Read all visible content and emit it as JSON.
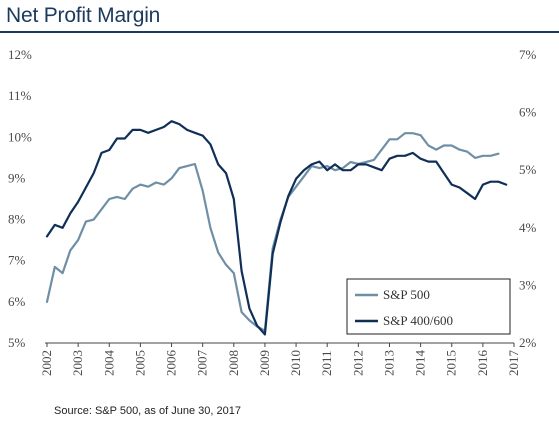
{
  "title": "Net Profit Margin",
  "source": "Source: S&P 500, as of June 30, 2017",
  "colors": {
    "title": "#1b3a5c",
    "sp500": "#6f8fa6",
    "sp400_600": "#0f2f57",
    "rule": "#1b3a5c"
  },
  "chart_data": {
    "type": "line",
    "title": "Net Profit Margin",
    "legend_position": "bottom-right",
    "grid": false,
    "x_ticks": [
      "2002",
      "2003",
      "2004",
      "2005",
      "2006",
      "2007",
      "2008",
      "2009",
      "2010",
      "2011",
      "2012",
      "2013",
      "2014",
      "2015",
      "2016",
      "2017"
    ],
    "xlim": [
      2002,
      2017
    ],
    "y_left": {
      "lim": [
        5,
        12
      ],
      "ticks": [
        "5%",
        "6%",
        "7%",
        "8%",
        "9%",
        "10%",
        "11%",
        "12%"
      ]
    },
    "y_right": {
      "lim": [
        2,
        7
      ],
      "ticks": [
        "2%",
        "3%",
        "4%",
        "5%",
        "6%",
        "7%"
      ]
    },
    "series": [
      {
        "name": "S&P 500",
        "axis": "left",
        "x": [
          2002.0,
          2002.25,
          2002.5,
          2002.75,
          2003.0,
          2003.25,
          2003.5,
          2003.75,
          2004.0,
          2004.25,
          2004.5,
          2004.75,
          2005.0,
          2005.25,
          2005.5,
          2005.75,
          2006.0,
          2006.25,
          2006.5,
          2006.75,
          2007.0,
          2007.25,
          2007.5,
          2007.75,
          2008.0,
          2008.25,
          2008.5,
          2008.75,
          2009.0,
          2009.25,
          2009.5,
          2009.75,
          2010.0,
          2010.25,
          2010.5,
          2010.75,
          2011.0,
          2011.25,
          2011.5,
          2011.75,
          2012.0,
          2012.25,
          2012.5,
          2012.75,
          2013.0,
          2013.25,
          2013.5,
          2013.75,
          2014.0,
          2014.25,
          2014.5,
          2014.75,
          2015.0,
          2015.25,
          2015.5,
          2015.75,
          2016.0,
          2016.25,
          2016.5
        ],
        "values": [
          6.0,
          6.85,
          6.7,
          7.25,
          7.5,
          7.95,
          8.0,
          8.25,
          8.5,
          8.55,
          8.5,
          8.75,
          8.85,
          8.8,
          8.9,
          8.85,
          9.0,
          9.25,
          9.3,
          9.35,
          8.7,
          7.8,
          7.2,
          6.9,
          6.7,
          5.75,
          5.55,
          5.4,
          5.3,
          7.3,
          8.0,
          8.55,
          8.8,
          9.05,
          9.3,
          9.25,
          9.3,
          9.2,
          9.25,
          9.4,
          9.35,
          9.4,
          9.45,
          9.7,
          9.95,
          9.95,
          10.1,
          10.1,
          10.05,
          9.8,
          9.7,
          9.8,
          9.8,
          9.7,
          9.65,
          9.5,
          9.55,
          9.55,
          9.6
        ]
      },
      {
        "name": "S&P 400/600",
        "axis": "right",
        "x": [
          2002.0,
          2002.25,
          2002.5,
          2002.75,
          2003.0,
          2003.25,
          2003.5,
          2003.75,
          2004.0,
          2004.25,
          2004.5,
          2004.75,
          2005.0,
          2005.25,
          2005.5,
          2005.75,
          2006.0,
          2006.25,
          2006.5,
          2006.75,
          2007.0,
          2007.25,
          2007.5,
          2007.75,
          2008.0,
          2008.25,
          2008.5,
          2008.75,
          2009.0,
          2009.25,
          2009.5,
          2009.75,
          2010.0,
          2010.25,
          2010.5,
          2010.75,
          2011.0,
          2011.25,
          2011.5,
          2011.75,
          2012.0,
          2012.25,
          2012.5,
          2012.75,
          2013.0,
          2013.25,
          2013.5,
          2013.75,
          2014.0,
          2014.25,
          2014.5,
          2014.75,
          2015.0,
          2015.25,
          2015.5,
          2015.75,
          2016.0,
          2016.25,
          2016.5,
          2016.75
        ],
        "values": [
          3.85,
          4.05,
          4.0,
          4.25,
          4.45,
          4.7,
          4.95,
          5.3,
          5.35,
          5.55,
          5.55,
          5.7,
          5.7,
          5.65,
          5.7,
          5.75,
          5.85,
          5.8,
          5.7,
          5.65,
          5.6,
          5.45,
          5.1,
          4.95,
          4.5,
          3.25,
          2.6,
          2.3,
          2.15,
          3.55,
          4.1,
          4.55,
          4.85,
          5.0,
          5.1,
          5.15,
          5.0,
          5.1,
          5.0,
          5.0,
          5.1,
          5.1,
          5.05,
          5.0,
          5.2,
          5.25,
          5.25,
          5.3,
          5.2,
          5.15,
          5.15,
          4.95,
          4.75,
          4.7,
          4.6,
          4.5,
          4.75,
          4.8,
          4.8,
          4.75
        ]
      }
    ]
  }
}
